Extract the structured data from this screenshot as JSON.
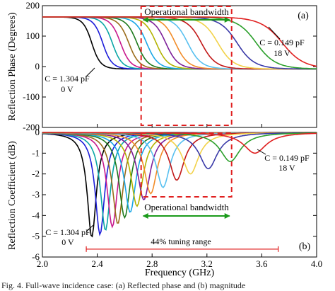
{
  "caption": "Fig. 4.  Full-wave incidence case: (a) Reflected phase and (b) magnitude",
  "colors": {
    "series": [
      "#000000",
      "#1c1cd9",
      "#0aa6a6",
      "#c8188c",
      "#9a6c1a",
      "#1d7a1d",
      "#18a6e6",
      "#b3b300",
      "#7d1f9a",
      "#f28c28",
      "#58c0f0",
      "#c21818",
      "#f2d24a",
      "#3a3aa8",
      "#2ca02c",
      "#e02020"
    ],
    "annotation": "#e02020",
    "arrow": "#1a9a1a"
  },
  "chart_data": [
    {
      "panel": "(a)",
      "type": "line",
      "xlabel": "",
      "ylabel": "Reflection Phase  (Degrees)",
      "xlim": [
        2.0,
        4.0
      ],
      "ylim": [
        -200,
        200
      ],
      "xticks": [],
      "yticks": [
        "-200",
        "-100",
        "0",
        "100",
        "200"
      ],
      "curve": "phase",
      "series": [
        {
          "center": 2.36,
          "width": 0.04
        },
        {
          "center": 2.44,
          "width": 0.042
        },
        {
          "center": 2.51,
          "width": 0.044
        },
        {
          "center": 2.57,
          "width": 0.046
        },
        {
          "center": 2.63,
          "width": 0.048
        },
        {
          "center": 2.69,
          "width": 0.05
        },
        {
          "center": 2.76,
          "width": 0.052
        },
        {
          "center": 2.83,
          "width": 0.054
        },
        {
          "center": 2.9,
          "width": 0.056
        },
        {
          "center": 2.97,
          "width": 0.058
        },
        {
          "center": 3.06,
          "width": 0.062
        },
        {
          "center": 3.16,
          "width": 0.066
        },
        {
          "center": 3.28,
          "width": 0.072
        },
        {
          "center": 3.42,
          "width": 0.08
        },
        {
          "center": 3.56,
          "width": 0.09
        },
        {
          "center": 3.75,
          "width": 0.1
        }
      ],
      "band": {
        "x0": 2.72,
        "x1": 3.38,
        "label": "Operational bandwidth"
      },
      "annotations": [
        {
          "line1": "C = 1.304 pF",
          "line2": "0 V"
        },
        {
          "line1": "C = 0.149 pF",
          "line2": "18 V"
        }
      ]
    },
    {
      "panel": "(b)",
      "type": "line",
      "xlabel": "Frequency  (GHz)",
      "ylabel": "Reflection Coefficient  (dB)",
      "xlim": [
        2.0,
        4.0
      ],
      "ylim": [
        -6,
        0
      ],
      "xticks": [
        "2.0",
        "2.4",
        "2.8",
        "3.2",
        "3.6",
        "4.0"
      ],
      "yticks": [
        "-6",
        "-5",
        "-4",
        "-3",
        "-2",
        "-1",
        "0"
      ],
      "curve": "dip",
      "series": [
        {
          "center": 2.36,
          "depth": -5.05,
          "width": 0.04
        },
        {
          "center": 2.42,
          "depth": -4.92,
          "width": 0.042
        },
        {
          "center": 2.46,
          "depth": -4.72,
          "width": 0.044
        },
        {
          "center": 2.51,
          "depth": -4.55,
          "width": 0.046
        },
        {
          "center": 2.55,
          "depth": -4.4,
          "width": 0.048
        },
        {
          "center": 2.6,
          "depth": -4.1,
          "width": 0.05
        },
        {
          "center": 2.64,
          "depth": -3.85,
          "width": 0.052
        },
        {
          "center": 2.69,
          "depth": -3.55,
          "width": 0.054
        },
        {
          "center": 2.74,
          "depth": -3.25,
          "width": 0.056
        },
        {
          "center": 2.79,
          "depth": -2.95,
          "width": 0.058
        },
        {
          "center": 2.88,
          "depth": -2.65,
          "width": 0.062
        },
        {
          "center": 2.98,
          "depth": -2.3,
          "width": 0.066
        },
        {
          "center": 3.08,
          "depth": -2.0,
          "width": 0.072
        },
        {
          "center": 3.21,
          "depth": -1.75,
          "width": 0.08
        },
        {
          "center": 3.37,
          "depth": -1.4,
          "width": 0.09
        },
        {
          "center": 3.55,
          "depth": -1.0,
          "width": 0.1
        }
      ],
      "band": {
        "x0": 2.72,
        "x1": 3.38,
        "label": "Operational bandwidth"
      },
      "tuning": {
        "x0": 2.32,
        "x1": 3.72,
        "y": -5.62,
        "label": "44% tuning range"
      },
      "annotations": [
        {
          "line1": "C = 1.304 pF",
          "line2": "0 V"
        },
        {
          "line1": "C = 0.149 pF",
          "line2": "18 V"
        }
      ]
    }
  ]
}
